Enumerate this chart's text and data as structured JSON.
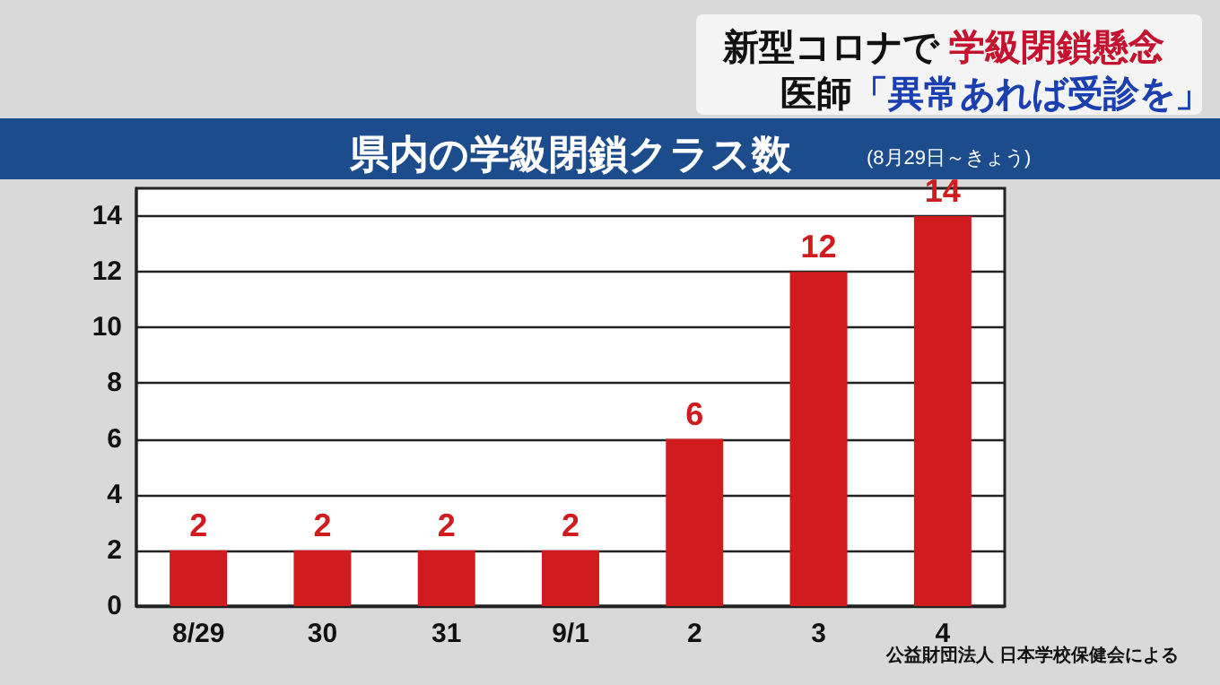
{
  "chart_data": {
    "type": "bar",
    "title": "県内の学級閉鎖クラス数",
    "subtitle": "(8月29日～きょう)",
    "annotations": [
      "新型コロナで",
      "学級閉鎖懸念",
      "医師",
      "「異常あれば受診を」",
      "公益財団法人 日本学校保健会による"
    ],
    "categories": [
      "8/29",
      "30",
      "31",
      "9/1",
      "2",
      "3",
      "4"
    ],
    "values": [
      2,
      2,
      2,
      2,
      6,
      12,
      14
    ],
    "color": "#d01c1f",
    "ylim": [
      0,
      15
    ],
    "yticks": [
      0,
      2,
      4,
      6,
      8,
      10,
      12,
      14
    ],
    "grid": "y",
    "data_labels": true
  }
}
